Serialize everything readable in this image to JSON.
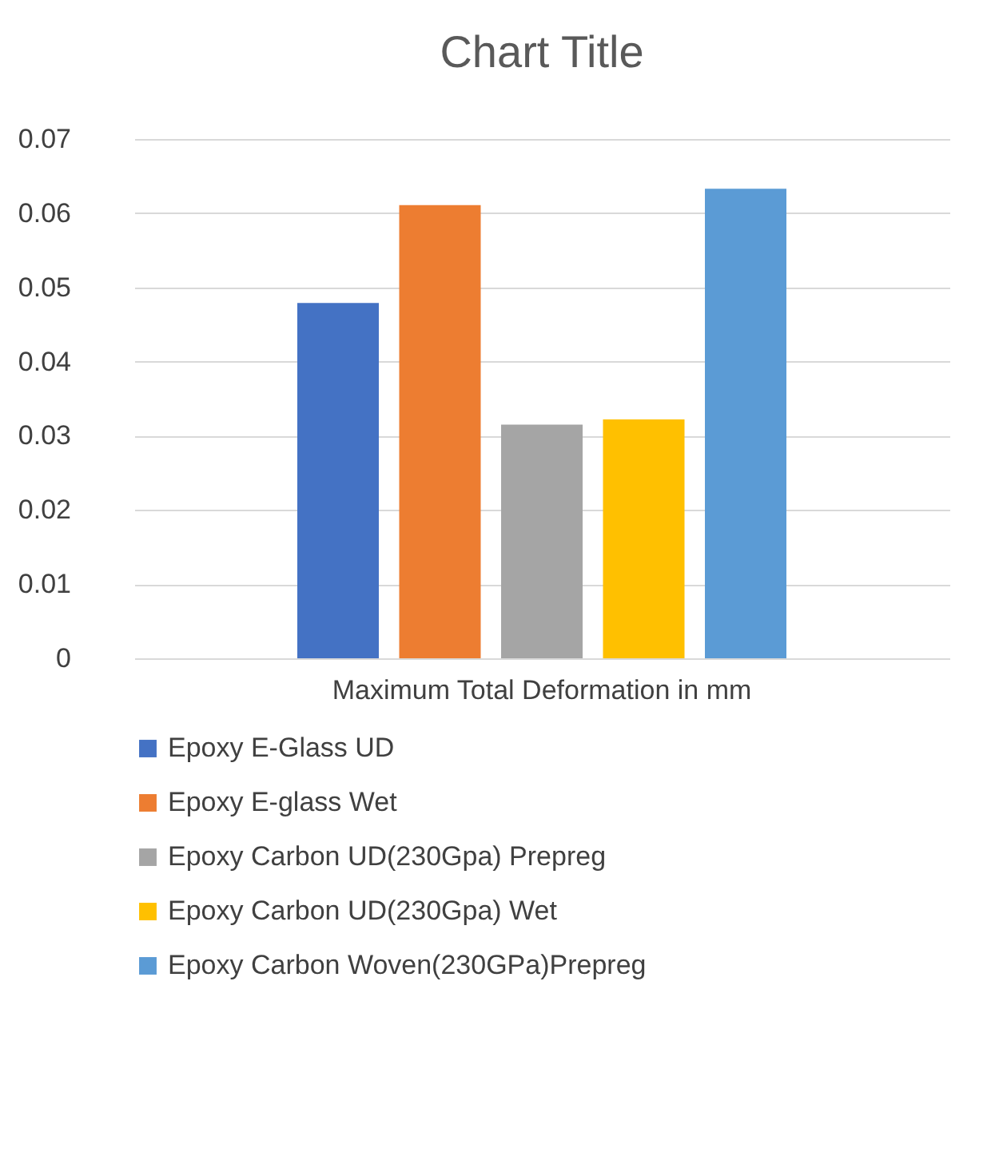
{
  "chart_data": {
    "type": "bar",
    "title": "Chart Title",
    "categories": [
      "Maximum Total Deformation in mm"
    ],
    "series": [
      {
        "name": "Epoxy E-Glass UD",
        "color": "#4472c4",
        "values": [
          0.0479
        ]
      },
      {
        "name": "Epoxy E-glass Wet",
        "color": "#ed7d31",
        "values": [
          0.0611
        ]
      },
      {
        "name": "Epoxy Carbon UD(230Gpa) Prepreg",
        "color": "#a5a5a5",
        "values": [
          0.0315
        ]
      },
      {
        "name": "Epoxy Carbon UD(230Gpa) Wet",
        "color": "#ffc000",
        "values": [
          0.0322
        ]
      },
      {
        "name": "Epoxy Carbon Woven(230GPa)Prepreg",
        "color": "#5b9bd5",
        "values": [
          0.0633
        ]
      }
    ],
    "ylim": [
      0,
      0.07
    ],
    "yticks": [
      0,
      0.01,
      0.02,
      0.03,
      0.04,
      0.05,
      0.06,
      0.07
    ],
    "grid": "y",
    "legend": "bottom"
  }
}
